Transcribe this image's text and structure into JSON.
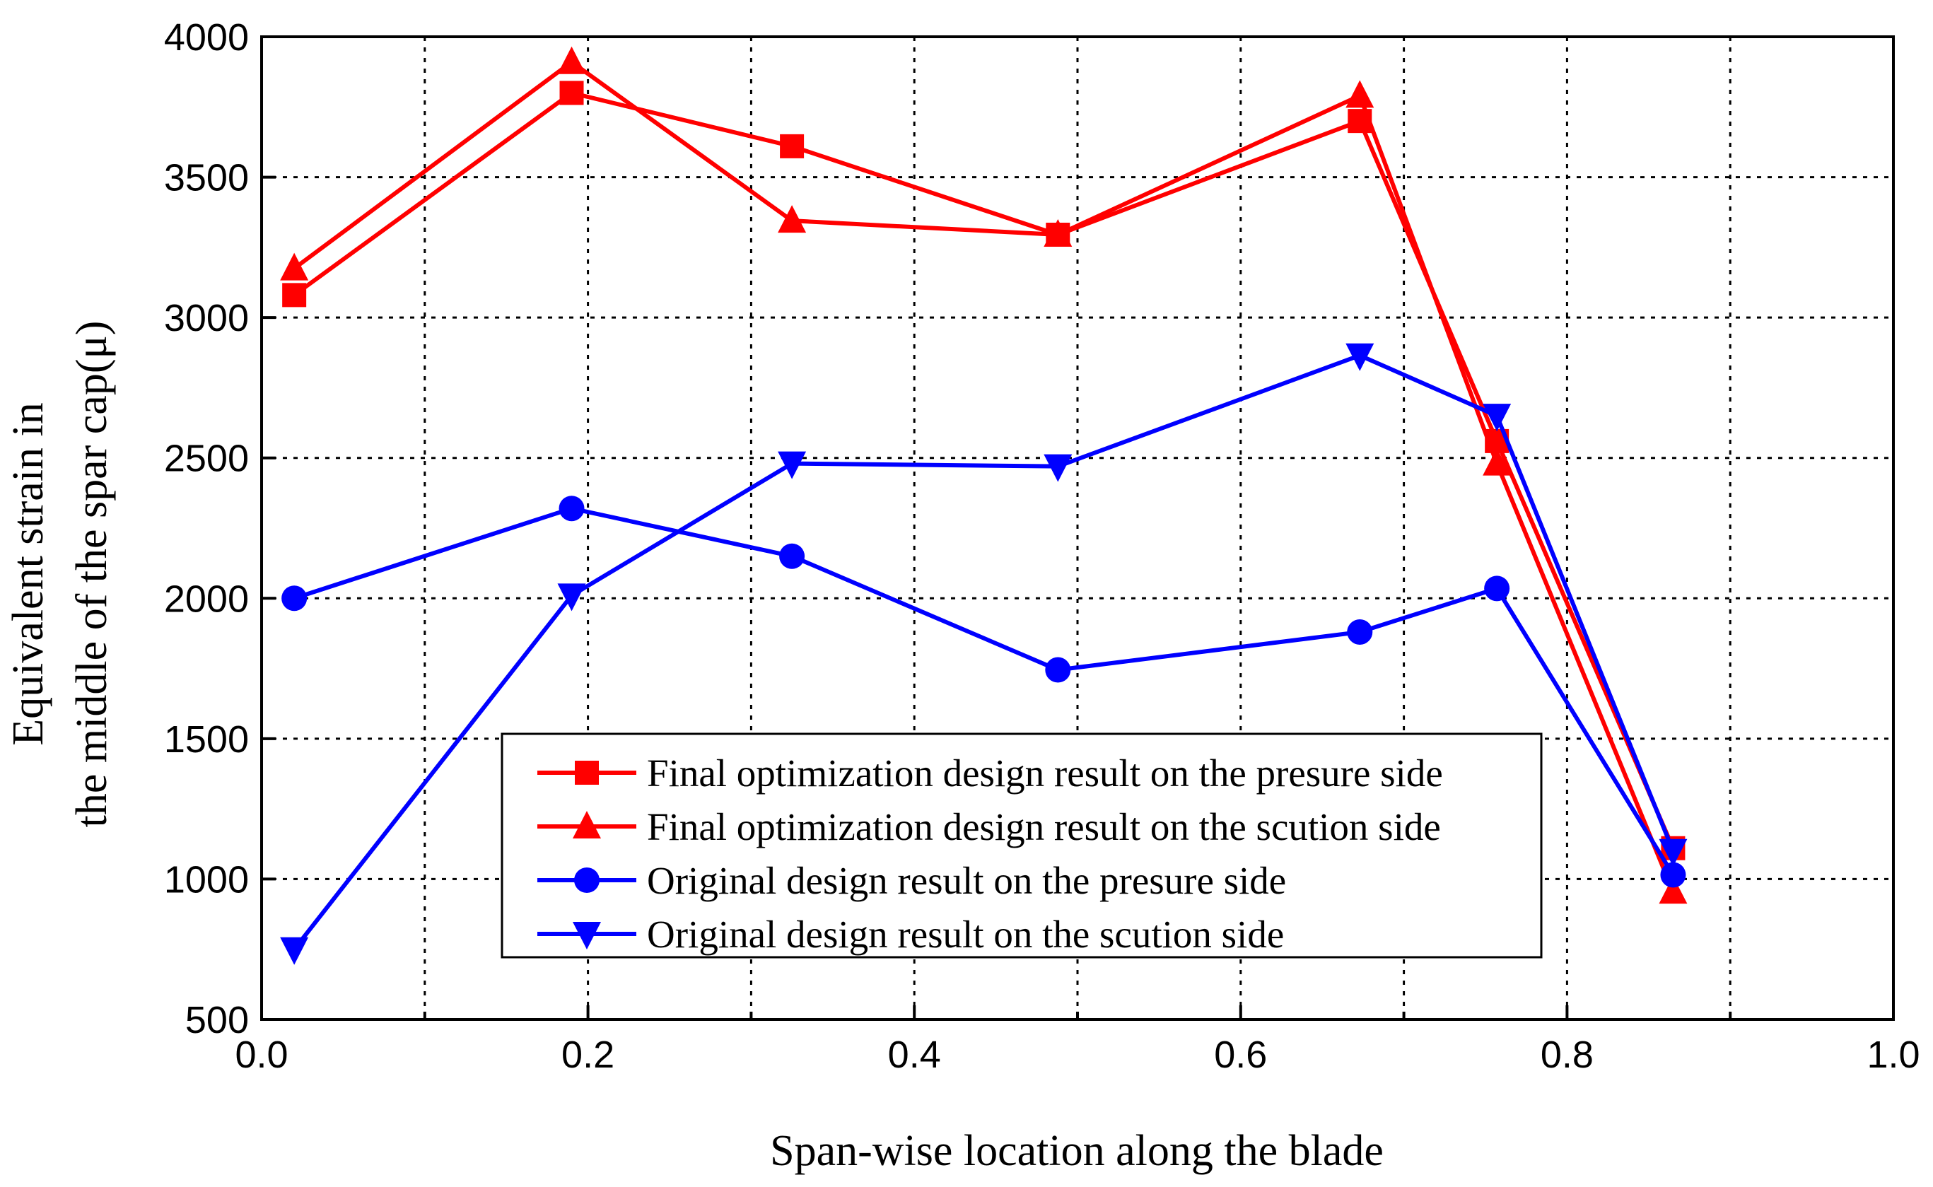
{
  "chart_data": {
    "type": "line",
    "title": "",
    "xlabel": "Span-wise location along the blade",
    "ylabel_lines": [
      "Equivalent strain in",
      "the middle of the spar cap(μ)"
    ],
    "xlim": [
      0.0,
      1.0
    ],
    "ylim": [
      500,
      4000
    ],
    "xticks": [
      0.0,
      0.1,
      0.2,
      0.3,
      0.4,
      0.5,
      0.6,
      0.7,
      0.8,
      0.9,
      1.0
    ],
    "xtick_labels": [
      "0.0",
      "0.2",
      "0.4",
      "0.6",
      "0.8",
      "1.0"
    ],
    "yticks": [
      500,
      1000,
      1500,
      2000,
      2500,
      3000,
      3500,
      4000
    ],
    "ytick_labels": [
      "500",
      "1000",
      "1500",
      "2000",
      "2500",
      "3000",
      "3500",
      "4000"
    ],
    "grid": true,
    "legend_position": "lower-center",
    "series": [
      {
        "name": "Final optimization design result on the presure side",
        "color": "#ff0000",
        "marker": "square",
        "x": [
          0.02,
          0.19,
          0.325,
          0.488,
          0.673,
          0.757,
          0.865
        ],
        "y": [
          3080,
          3800,
          3610,
          3295,
          3700,
          2560,
          1110
        ]
      },
      {
        "name": "Final optimization design result on the scution side",
        "color": "#ff0000",
        "marker": "triangle-up",
        "x": [
          0.02,
          0.19,
          0.325,
          0.488,
          0.673,
          0.757,
          0.865
        ],
        "y": [
          3175,
          3910,
          3345,
          3295,
          3790,
          2480,
          955
        ]
      },
      {
        "name": "Original design result on the presure side",
        "color": "#0000ff",
        "marker": "circle",
        "x": [
          0.02,
          0.19,
          0.325,
          0.488,
          0.673,
          0.757,
          0.865
        ],
        "y": [
          2000,
          2320,
          2150,
          1745,
          1880,
          2035,
          1015
        ]
      },
      {
        "name": "Original design result on the scution side",
        "color": "#0000ff",
        "marker": "triangle-down",
        "x": [
          0.02,
          0.19,
          0.325,
          0.488,
          0.673,
          0.757,
          0.865
        ],
        "y": [
          750,
          2010,
          2480,
          2470,
          2865,
          2650,
          1100
        ]
      }
    ]
  }
}
